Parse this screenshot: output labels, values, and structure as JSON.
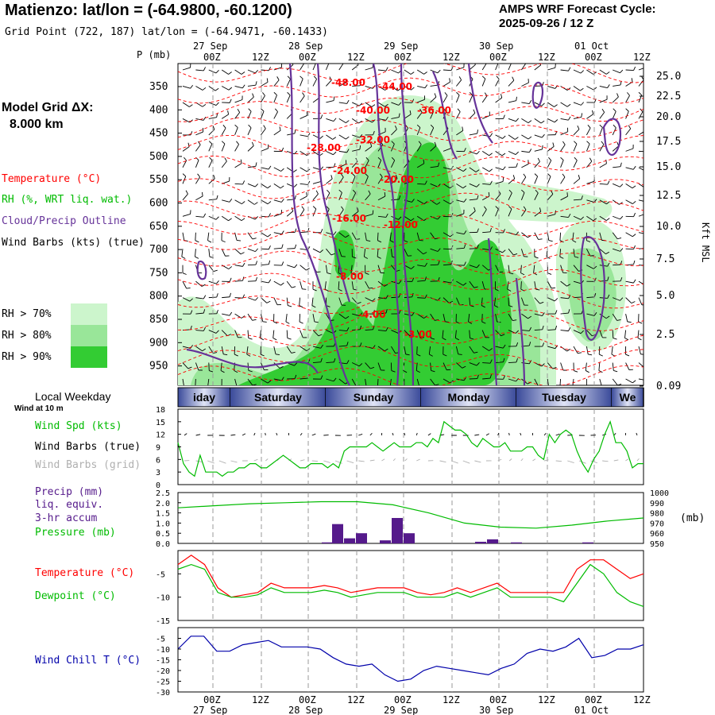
{
  "header": {
    "title": "Matienzo:  lat/lon = (-64.9800, -60.1200)",
    "subtitle": "Grid Point (722, 187) lat/lon = (-64.9471, -60.1433)",
    "cycle_label": "AMPS WRF Forecast Cycle:",
    "cycle_value": "2025-09-26 / 12  Z"
  },
  "left_panel": {
    "model_grid_label": "Model Grid ΔX:",
    "model_grid_value": "8.000 km",
    "temperature_legend": "Temperature (°C)",
    "rh_legend": "RH (%, WRT liq. wat.)",
    "cloud_legend": "Cloud/Precip Outline",
    "wind_legend": "Wind Barbs (kts) (true)",
    "rh_bins": [
      {
        "label": "RH > 70%",
        "color": "#ccf5cc"
      },
      {
        "label": "RH > 80%",
        "color": "#99e699"
      },
      {
        "label": "RH > 90%",
        "color": "#33cc33"
      }
    ]
  },
  "time_axis": {
    "hours": [
      "00Z",
      "12Z",
      "00Z",
      "12Z",
      "00Z",
      "12Z",
      "00Z",
      "12Z",
      "00Z",
      "12Z"
    ],
    "dates": [
      "27 Sep",
      "28 Sep",
      "29 Sep",
      "30 Sep",
      "01 Oct"
    ],
    "weekdays": [
      "iday",
      "Saturday",
      "Sunday",
      "Monday",
      "Tuesday",
      "We"
    ],
    "weekday_title": "Local Weekday"
  },
  "colors": {
    "temperature": "#ff0000",
    "rh_line": "#00bb00",
    "cloud_outline": "#663399",
    "wind_chill": "#0000aa",
    "precip_bars": "#551a8b",
    "grid_barbs": "#b0b0b0"
  },
  "chart_data": [
    {
      "type": "heatmap",
      "ylabel": "P (mb)",
      "y_ticks": [
        "350",
        "400",
        "450",
        "500",
        "550",
        "600",
        "650",
        "700",
        "750",
        "800",
        "850",
        "900",
        "950"
      ],
      "right_axis_ticks": [
        "25.0",
        "22.5",
        "20.0",
        "17.5",
        "15.0",
        "12.5",
        "10.0",
        "7.5",
        "5.0",
        "2.5",
        "0.09"
      ],
      "right_axis_label": "Kft MSL",
      "temperature_contour_labels": [
        "-48.00",
        "-44.00",
        "-40.00",
        "-36.00",
        "-32.00",
        "-28.00",
        "-24.00",
        "-20.00",
        "-16.00",
        "-12.00",
        "-8.00",
        "-4.00",
        "-3.00"
      ]
    },
    {
      "type": "line",
      "title": "Wind at 10 m",
      "series": [
        {
          "name": "Wind Spd (kts)",
          "values": [
            10,
            5,
            3,
            2,
            7,
            3,
            3,
            3,
            2,
            3,
            3,
            4,
            4,
            5,
            5,
            4,
            4,
            5,
            6,
            7,
            6,
            5,
            4,
            4,
            5,
            5,
            5,
            4,
            5,
            4,
            8,
            9,
            9,
            9,
            9,
            10,
            9,
            8,
            9,
            10,
            9,
            9,
            9,
            10,
            10,
            9,
            11,
            10,
            15,
            14,
            13,
            13,
            12,
            10,
            9,
            11,
            10,
            9,
            9,
            10,
            8,
            8,
            8,
            9,
            9,
            7,
            6,
            12,
            10,
            12,
            13,
            12,
            8,
            5,
            3,
            6,
            8,
            12,
            15,
            10,
            10,
            8,
            4,
            5,
            5
          ]
        },
        {
          "name": "Wind Barbs (true)",
          "values": []
        },
        {
          "name": "Wind Barbs (grid)",
          "values": []
        }
      ],
      "y_ticks": [
        "18",
        "15",
        "12",
        "9",
        "6",
        "3",
        "0"
      ],
      "ylim": [
        0,
        18
      ]
    },
    {
      "type": "bar",
      "title": "",
      "series": [
        {
          "name": "Precip (mm)",
          "values": [
            0.05,
            0.95,
            0.25,
            0.5,
            0.15,
            1.25,
            0.5,
            0.08,
            0.2,
            0.05,
            0.05
          ]
        },
        {
          "name": "Pressure (mb)",
          "values": [
            985,
            987,
            989,
            990,
            991,
            991,
            988,
            980,
            970,
            966,
            965,
            968,
            972,
            975
          ]
        }
      ],
      "precip_label_lines": [
        "Precip (mm)",
        "liq. equiv.",
        "3-hr accum"
      ],
      "y_ticks_left": [
        "2.5",
        "2.0",
        "1.5",
        "1.0",
        "0.5",
        "0.0"
      ],
      "y_ticks_right": [
        "1000",
        "990",
        "980",
        "970",
        "960",
        "950"
      ],
      "right_unit": "(mb)",
      "ylim": [
        0,
        2.5
      ]
    },
    {
      "type": "line",
      "series": [
        {
          "name": "Temperature (°C)",
          "values": [
            -3,
            -1,
            -3,
            -8,
            -10,
            -9.5,
            -9,
            -7,
            -8,
            -8,
            -8,
            -7.5,
            -8,
            -9,
            -8.5,
            -8,
            -8,
            -8,
            -9,
            -9.5,
            -9,
            -8,
            -9,
            -8,
            -7,
            -9,
            -9,
            -9,
            -9,
            -9,
            -4,
            -2,
            -2,
            -4,
            -6,
            -5
          ]
        },
        {
          "name": "Dewpoint (°C)",
          "values": [
            -4,
            -3,
            -4,
            -9,
            -10,
            -10,
            -9.5,
            -8,
            -9,
            -9,
            -9,
            -8.5,
            -9,
            -10,
            -9.5,
            -9,
            -9,
            -9,
            -10,
            -10,
            -10,
            -9,
            -10,
            -9,
            -8,
            -10,
            -10,
            -10,
            -10,
            -11,
            -7,
            -3,
            -5,
            -9,
            -11,
            -12
          ]
        }
      ],
      "y_ticks": [
        "-5",
        "-10",
        "-15"
      ],
      "ylim": [
        -15,
        0
      ]
    },
    {
      "type": "line",
      "series": [
        {
          "name": "Wind Chill T (°C)",
          "values": [
            -10,
            -4,
            -4,
            -11,
            -11,
            -8,
            -7,
            -6,
            -9,
            -9,
            -9,
            -10,
            -14,
            -17,
            -18,
            -17,
            -22,
            -25,
            -24,
            -20,
            -18,
            -19,
            -20,
            -21,
            -22,
            -19,
            -17,
            -12,
            -10,
            -11,
            -9,
            -5,
            -14,
            -13,
            -10,
            -10,
            -8
          ]
        }
      ],
      "y_ticks": [
        "-5",
        "-10",
        "-15",
        "-20",
        "-25",
        "-30"
      ],
      "ylim": [
        -30,
        0
      ]
    }
  ]
}
